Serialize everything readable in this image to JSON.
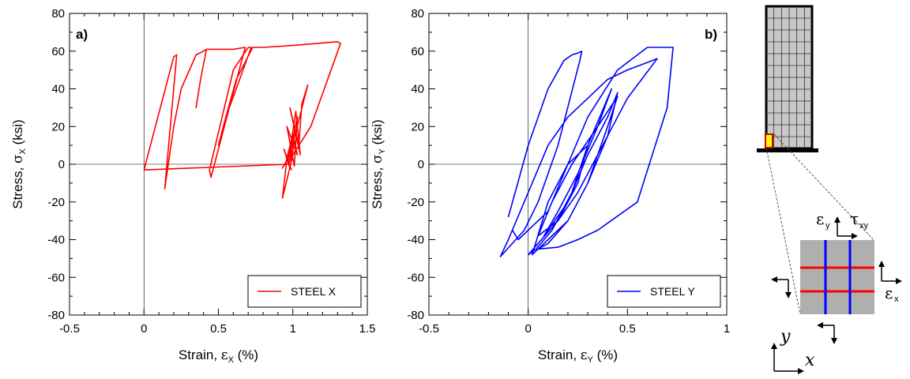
{
  "chart_data": [
    {
      "type": "line",
      "panel_label": "a)",
      "xlabel": "Strain, εX (%)",
      "ylabel": "Stress, σX (ksi)",
      "xlabel_parts": {
        "prefix": "Strain, ",
        "symbol": "ε",
        "sub": "X",
        "suffix": " (%)"
      },
      "ylabel_parts": {
        "prefix": "Stress, ",
        "symbol": "σ",
        "sub": "X",
        "suffix": " (ksi)"
      },
      "xlim": [
        -0.5,
        1.5
      ],
      "ylim": [
        -80,
        80
      ],
      "x_ticks": [
        -0.5,
        0,
        0.5,
        1,
        1.5
      ],
      "x_tick_labels": [
        "-0.5",
        "0",
        "0.5",
        "1",
        "1.5"
      ],
      "y_ticks": [
        -80,
        -60,
        -40,
        -20,
        0,
        20,
        40,
        60,
        80
      ],
      "y_tick_labels": [
        "-80",
        "-60",
        "-40",
        "-20",
        "0",
        "20",
        "40",
        "60",
        "80"
      ],
      "legend_position": "bottom-right",
      "series": [
        {
          "name": "STEEL X",
          "color": "#ff0000",
          "x": [
            0.0,
            0.2,
            0.22,
            0.14,
            0.2,
            0.25,
            0.35,
            0.4,
            0.42,
            0.38,
            0.35,
            0.38,
            0.42,
            0.6,
            0.68,
            0.45,
            0.44,
            0.6,
            0.7,
            0.72,
            0.62,
            0.55,
            0.5,
            0.55,
            0.62,
            0.73,
            0.8,
            1.0,
            1.3,
            1.32,
            1.12,
            1.0,
            0.93,
            0.96,
            0.99,
            0.94,
            0.98,
            1.01,
            0.95,
            1.0,
            1.03,
            0.96,
            1.01,
            1.03,
            0.97,
            1.02,
            1.05,
            0.98,
            1.04,
            1.06,
            1.1,
            0.98,
            0.93,
            1.0,
            0.97,
            0.0
          ],
          "y": [
            -3,
            57,
            58,
            -13,
            20,
            40,
            58,
            60,
            61,
            45,
            30,
            45,
            61,
            61,
            62,
            -7,
            -3,
            50,
            62,
            62,
            40,
            25,
            10,
            25,
            45,
            62,
            62,
            63,
            65,
            64,
            20,
            5,
            -18,
            3,
            -3,
            8,
            -2,
            12,
            0,
            16,
            5,
            20,
            -1,
            25,
            2,
            28,
            5,
            30,
            10,
            32,
            42,
            5,
            -2,
            7,
            0,
            -3
          ]
        }
      ]
    },
    {
      "type": "line",
      "panel_label": "b)",
      "xlabel": "Strain, εY (%)",
      "ylabel": "Stress, σY (ksi)",
      "xlabel_parts": {
        "prefix": "Strain, ",
        "symbol": "ε",
        "sub": "Y",
        "suffix": " (%)"
      },
      "ylabel_parts": {
        "prefix": "Stress, ",
        "symbol": "σ",
        "sub": "Y",
        "suffix": " (ksi)"
      },
      "xlim": [
        -0.5,
        1
      ],
      "ylim": [
        -80,
        80
      ],
      "x_ticks": [
        -0.5,
        0,
        0.5,
        1
      ],
      "x_tick_labels": [
        "-0.5",
        "0",
        "0.5",
        "1"
      ],
      "y_ticks": [
        -80,
        -60,
        -40,
        -20,
        0,
        20,
        40,
        60,
        80
      ],
      "legend_position": "bottom-right",
      "series": [
        {
          "name": "STEEL Y",
          "color": "#0000ff",
          "x": [
            -0.1,
            0.0,
            0.1,
            0.18,
            0.22,
            0.25,
            0.27,
            0.26,
            0.15,
            0.05,
            -0.02,
            -0.14,
            -0.1,
            0.0,
            0.1,
            0.2,
            0.3,
            0.4,
            0.5,
            0.6,
            0.65,
            0.5,
            0.35,
            0.25,
            0.15,
            0.05,
            0.0,
            0.04,
            0.12,
            0.22,
            0.3,
            0.38,
            0.42,
            0.35,
            0.25,
            0.15,
            0.08,
            0.1,
            0.2,
            0.3,
            0.4,
            0.45,
            0.4,
            0.3,
            0.2,
            0.1,
            0.05,
            0.15,
            0.25,
            0.35,
            0.55,
            0.7,
            0.73,
            0.6,
            0.45,
            0.3,
            0.2,
            0.1,
            0.02,
            0.1,
            0.2,
            0.3,
            0.4,
            0.45,
            0.35,
            0.22,
            0.12,
            0.05,
            0.15,
            0.25,
            0.3,
            0.2,
            0.1,
            -0.05,
            -0.08
          ],
          "y": [
            -28,
            10,
            40,
            55,
            58,
            59,
            60,
            55,
            10,
            -20,
            -35,
            -49,
            -40,
            -15,
            10,
            25,
            35,
            45,
            50,
            54,
            56,
            35,
            5,
            -15,
            -30,
            -42,
            -48,
            -45,
            -35,
            -15,
            10,
            30,
            40,
            20,
            -5,
            -25,
            -38,
            -35,
            -20,
            5,
            25,
            38,
            15,
            -10,
            -30,
            -42,
            -45,
            -44,
            -40,
            -35,
            -20,
            30,
            62,
            62,
            50,
            25,
            0,
            -20,
            -48,
            -40,
            -30,
            -10,
            20,
            36,
            20,
            0,
            -20,
            -38,
            -30,
            -10,
            10,
            0,
            -25,
            -40,
            -35
          ]
        }
      ]
    }
  ],
  "schematic": {
    "strain_y": {
      "symbol": "ε",
      "sub": "y"
    },
    "shear_xy": {
      "symbol": "τ",
      "sub": "xy"
    },
    "strain_x": {
      "symbol": "ε",
      "sub": "x"
    },
    "axis_y": "y",
    "axis_x": "x",
    "colors": {
      "red_bars": "#ff0000",
      "blue_bars": "#0000ff",
      "highlight": "#ffff00"
    }
  }
}
